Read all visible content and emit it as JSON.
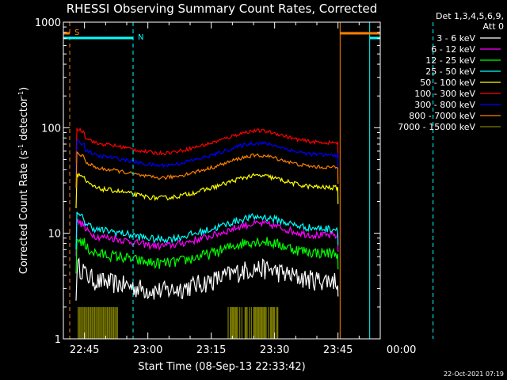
{
  "chart_data": {
    "type": "line",
    "title": "RHESSI Observing Summary Count Rates, Corrected",
    "xlabel": "Start Time (08-Sep-13 22:33:42)",
    "ylabel_main": "Corrected Count Rate (s",
    "ylabel_sup1": "-1",
    "ylabel_mid": " detector",
    "ylabel_sup2": "-1",
    "ylabel_end": ")",
    "ylabel": "Corrected Count Rate (s-1 detector-1)",
    "yscale": "log",
    "ylim": [
      1,
      1000
    ],
    "xlim_minutes": [
      -5,
      70
    ],
    "x_ticks": [
      {
        "m": 0,
        "label": "22:45"
      },
      {
        "m": 15,
        "label": "23:00"
      },
      {
        "m": 30,
        "label": "23:15"
      },
      {
        "m": 45,
        "label": "23:30"
      },
      {
        "m": 60,
        "label": "23:45"
      },
      {
        "m": 75,
        "label": "00:00"
      }
    ],
    "y_ticks": [
      {
        "v": 1,
        "label": "1"
      },
      {
        "v": 10,
        "label": "10"
      },
      {
        "v": 100,
        "label": "100"
      },
      {
        "v": 1000,
        "label": "1000"
      }
    ],
    "legend_header": [
      "Det 1,3,4,5,6,9,",
      "Att 0"
    ],
    "series": [
      {
        "name": "3 - 6 keV",
        "color": "#ffffff",
        "base": 3.6,
        "jitter": 0.22,
        "dip": 0.7
      },
      {
        "name": "6 - 12 keV",
        "color": "#ff00ff",
        "base": 9.5,
        "jitter": 0.08,
        "dip": 0.85
      },
      {
        "name": "12 - 25 keV",
        "color": "#00ff00",
        "base": 6.5,
        "jitter": 0.12,
        "dip": 0.8
      },
      {
        "name": "25 - 50 keV",
        "color": "#00ffff",
        "base": 11.0,
        "jitter": 0.08,
        "dip": 0.85
      },
      {
        "name": "50 - 100 keV",
        "color": "#ffff00",
        "base": 27.0,
        "jitter": 0.05,
        "dip": 0.8
      },
      {
        "name": "100 - 300 keV",
        "color": "#ff0000",
        "base": 72.0,
        "jitter": 0.04,
        "dip": 0.8
      },
      {
        "name": "300 - 800 keV",
        "color": "#0000ff",
        "base": 55.0,
        "jitter": 0.04,
        "dip": 0.8
      },
      {
        "name": "800 - 7000 keV",
        "color": "#ff8000",
        "base": 42.0,
        "jitter": 0.04,
        "dip": 0.8
      },
      {
        "name": "7000 - 15000 keV",
        "color": "#808000",
        "base": 1.0,
        "jitter": 0,
        "dip": 1
      }
    ],
    "annotations": [
      {
        "label": "S",
        "color": "#ff8000"
      },
      {
        "label": "N",
        "color": "#00ffff"
      }
    ],
    "footer_date": "22-Oct-2021 07:19"
  }
}
